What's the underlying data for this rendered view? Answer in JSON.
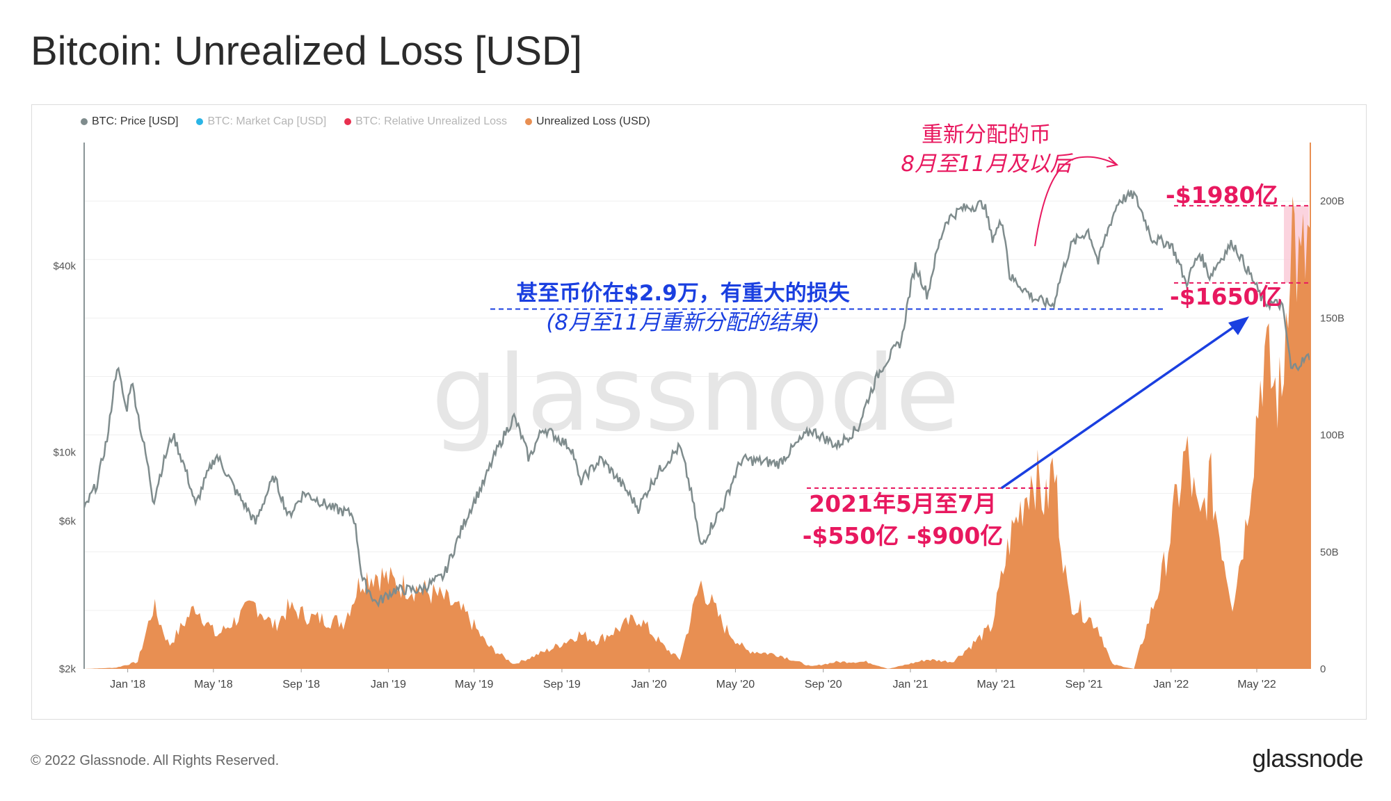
{
  "header": {
    "title": "Bitcoin: Unrealized Loss [USD]"
  },
  "legend": [
    {
      "label": "BTC: Price [USD]",
      "color": "#7f8c8d",
      "active": true
    },
    {
      "label": "BTC: Market Cap [USD]",
      "color": "#2ab5e6",
      "active": false
    },
    {
      "label": "BTC: Relative Unrealized Loss",
      "color": "#e8304f",
      "active": false
    },
    {
      "label": "Unrealized Loss (USD)",
      "color": "#e88f52",
      "active": true
    }
  ],
  "watermark": "glassnode",
  "footer": {
    "copyright": "© 2022 Glassnode. All Rights Reserved.",
    "logo": "glassnode"
  },
  "annotations": {
    "top_label_1": "重新分配的币",
    "top_label_2": "8月至11月及以后",
    "max_label": "-$1980亿",
    "min_label": "-$1650亿",
    "mid_label_1": "甚至币价在$2.9万，有重大的损失",
    "mid_label_2": "(8月至11月重新分配的结果)",
    "bottom_label_1": "2021年5月至7月",
    "bottom_label_2": "-$550亿 -$900亿"
  },
  "colors": {
    "price": "#7f8c8d",
    "loss": "#e88f52",
    "annotation_pink": "#e8185f",
    "annotation_blue": "#1a3fe0",
    "axis_right": "#e88f52"
  },
  "chart_data": {
    "type": "area",
    "title": "Bitcoin: Unrealized Loss [USD]",
    "x_ticks": [
      "Jan '18",
      "May '18",
      "Sep '18",
      "Jan '19",
      "May '19",
      "Sep '19",
      "Jan '20",
      "May '20",
      "Sep '20",
      "Jan '21",
      "May '21",
      "Sep '21",
      "Jan '22",
      "May '22"
    ],
    "y_left": {
      "scale": "log",
      "ticks": [
        "$2k",
        "$6k",
        "$10k",
        "$40k"
      ],
      "tick_values": [
        2000,
        6000,
        10000,
        40000
      ],
      "range": [
        2000,
        100000
      ]
    },
    "y_right": {
      "scale": "linear",
      "ticks": [
        "0",
        "50B",
        "100B",
        "150B",
        "200B"
      ],
      "tick_values": [
        0,
        50,
        100,
        150,
        200
      ],
      "range": [
        0,
        225
      ],
      "unit": "B USD"
    },
    "x_range": [
      "2017-11-01",
      "2022-07-15"
    ],
    "series": [
      {
        "name": "BTC: Price [USD]",
        "axis": "left",
        "points": [
          [
            "2017-11-01",
            6500
          ],
          [
            "2017-11-20",
            8000
          ],
          [
            "2017-12-05",
            11500
          ],
          [
            "2017-12-17",
            19000
          ],
          [
            "2017-12-30",
            13500
          ],
          [
            "2018-01-06",
            17000
          ],
          [
            "2018-01-20",
            11500
          ],
          [
            "2018-02-06",
            6900
          ],
          [
            "2018-03-05",
            11400
          ],
          [
            "2018-04-06",
            6700
          ],
          [
            "2018-05-05",
            9800
          ],
          [
            "2018-06-01",
            7500
          ],
          [
            "2018-06-29",
            5900
          ],
          [
            "2018-07-25",
            8300
          ],
          [
            "2018-08-14",
            6200
          ],
          [
            "2018-09-05",
            7400
          ],
          [
            "2018-10-15",
            6600
          ],
          [
            "2018-11-13",
            6300
          ],
          [
            "2018-11-25",
            3900
          ],
          [
            "2018-12-15",
            3250
          ],
          [
            "2019-01-10",
            3600
          ],
          [
            "2019-02-15",
            3600
          ],
          [
            "2019-03-20",
            4000
          ],
          [
            "2019-04-05",
            5000
          ],
          [
            "2019-05-15",
            8000
          ],
          [
            "2019-06-26",
            13000
          ],
          [
            "2019-07-17",
            9500
          ],
          [
            "2019-08-06",
            12000
          ],
          [
            "2019-09-15",
            10300
          ],
          [
            "2019-09-26",
            8000
          ],
          [
            "2019-10-26",
            9500
          ],
          [
            "2019-12-17",
            6600
          ],
          [
            "2020-01-15",
            8700
          ],
          [
            "2020-02-13",
            10400
          ],
          [
            "2020-03-13",
            4900
          ],
          [
            "2020-04-15",
            6800
          ],
          [
            "2020-05-10",
            9500
          ],
          [
            "2020-07-01",
            9200
          ],
          [
            "2020-08-15",
            11800
          ],
          [
            "2020-09-20",
            10500
          ],
          [
            "2020-10-20",
            12000
          ],
          [
            "2020-11-20",
            18500
          ],
          [
            "2020-12-20",
            23000
          ],
          [
            "2021-01-08",
            40000
          ],
          [
            "2021-01-25",
            32000
          ],
          [
            "2021-02-20",
            56000
          ],
          [
            "2021-03-13",
            61000
          ],
          [
            "2021-04-14",
            63500
          ],
          [
            "2021-04-25",
            49000
          ],
          [
            "2021-05-10",
            56000
          ],
          [
            "2021-05-20",
            37000
          ],
          [
            "2021-06-22",
            31500
          ],
          [
            "2021-07-20",
            29800
          ],
          [
            "2021-08-15",
            47000
          ],
          [
            "2021-09-07",
            52000
          ],
          [
            "2021-09-21",
            41000
          ],
          [
            "2021-10-20",
            65000
          ],
          [
            "2021-11-10",
            68000
          ],
          [
            "2021-12-05",
            49000
          ],
          [
            "2022-01-01",
            47000
          ],
          [
            "2022-01-22",
            35000
          ],
          [
            "2022-02-10",
            44000
          ],
          [
            "2022-02-24",
            37000
          ],
          [
            "2022-03-28",
            47500
          ],
          [
            "2022-04-15",
            40000
          ],
          [
            "2022-05-10",
            30500
          ],
          [
            "2022-06-05",
            30000
          ],
          [
            "2022-06-18",
            18500
          ],
          [
            "2022-07-15",
            20500
          ]
        ]
      },
      {
        "name": "Unrealized Loss (USD)",
        "axis": "right",
        "points": [
          [
            "2017-11-01",
            0
          ],
          [
            "2017-12-15",
            0.5
          ],
          [
            "2018-01-15",
            3
          ],
          [
            "2018-02-06",
            27
          ],
          [
            "2018-02-28",
            10
          ],
          [
            "2018-04-06",
            27
          ],
          [
            "2018-05-05",
            14
          ],
          [
            "2018-06-28",
            28
          ],
          [
            "2018-07-25",
            18
          ],
          [
            "2018-08-14",
            26
          ],
          [
            "2018-09-15",
            22
          ],
          [
            "2018-10-30",
            20
          ],
          [
            "2018-11-25",
            39
          ],
          [
            "2018-12-15",
            41
          ],
          [
            "2019-01-15",
            36
          ],
          [
            "2019-02-15",
            34
          ],
          [
            "2019-03-20",
            30
          ],
          [
            "2019-04-20",
            23
          ],
          [
            "2019-05-20",
            10
          ],
          [
            "2019-06-26",
            2
          ],
          [
            "2019-07-20",
            5
          ],
          [
            "2019-08-20",
            9
          ],
          [
            "2019-09-26",
            15
          ],
          [
            "2019-10-20",
            12
          ],
          [
            "2019-12-17",
            22
          ],
          [
            "2020-01-20",
            10
          ],
          [
            "2020-02-13",
            4
          ],
          [
            "2020-03-13",
            37
          ],
          [
            "2020-04-15",
            18
          ],
          [
            "2020-05-15",
            8
          ],
          [
            "2020-07-01",
            6
          ],
          [
            "2020-08-15",
            1
          ],
          [
            "2020-09-20",
            3
          ],
          [
            "2020-11-01",
            3
          ],
          [
            "2020-12-01",
            0
          ],
          [
            "2021-01-25",
            4
          ],
          [
            "2021-03-01",
            3
          ],
          [
            "2021-04-25",
            18
          ],
          [
            "2021-05-20",
            55
          ],
          [
            "2021-06-22",
            85
          ],
          [
            "2021-07-10",
            70
          ],
          [
            "2021-07-20",
            88
          ],
          [
            "2021-08-10",
            30
          ],
          [
            "2021-09-21",
            18
          ],
          [
            "2021-10-10",
            2
          ],
          [
            "2021-11-10",
            0
          ],
          [
            "2021-12-05",
            25
          ],
          [
            "2021-12-20",
            40
          ],
          [
            "2022-01-22",
            93
          ],
          [
            "2022-02-10",
            60
          ],
          [
            "2022-02-24",
            82
          ],
          [
            "2022-03-28",
            28
          ],
          [
            "2022-04-15",
            60
          ],
          [
            "2022-05-10",
            135
          ],
          [
            "2022-05-25",
            120
          ],
          [
            "2022-06-05",
            115
          ],
          [
            "2022-06-18",
            198
          ],
          [
            "2022-06-30",
            165
          ],
          [
            "2022-07-15",
            185
          ]
        ]
      }
    ],
    "reference_lines": [
      {
        "axis": "right",
        "value": 198,
        "label": "-$1980亿"
      },
      {
        "axis": "right",
        "value": 165,
        "label": "-$1650亿"
      },
      {
        "axis": "left",
        "value": 29000,
        "label": "甚至币价在$2.9万，有重大的损失"
      }
    ],
    "grid": true,
    "legend_position": "top-left"
  }
}
